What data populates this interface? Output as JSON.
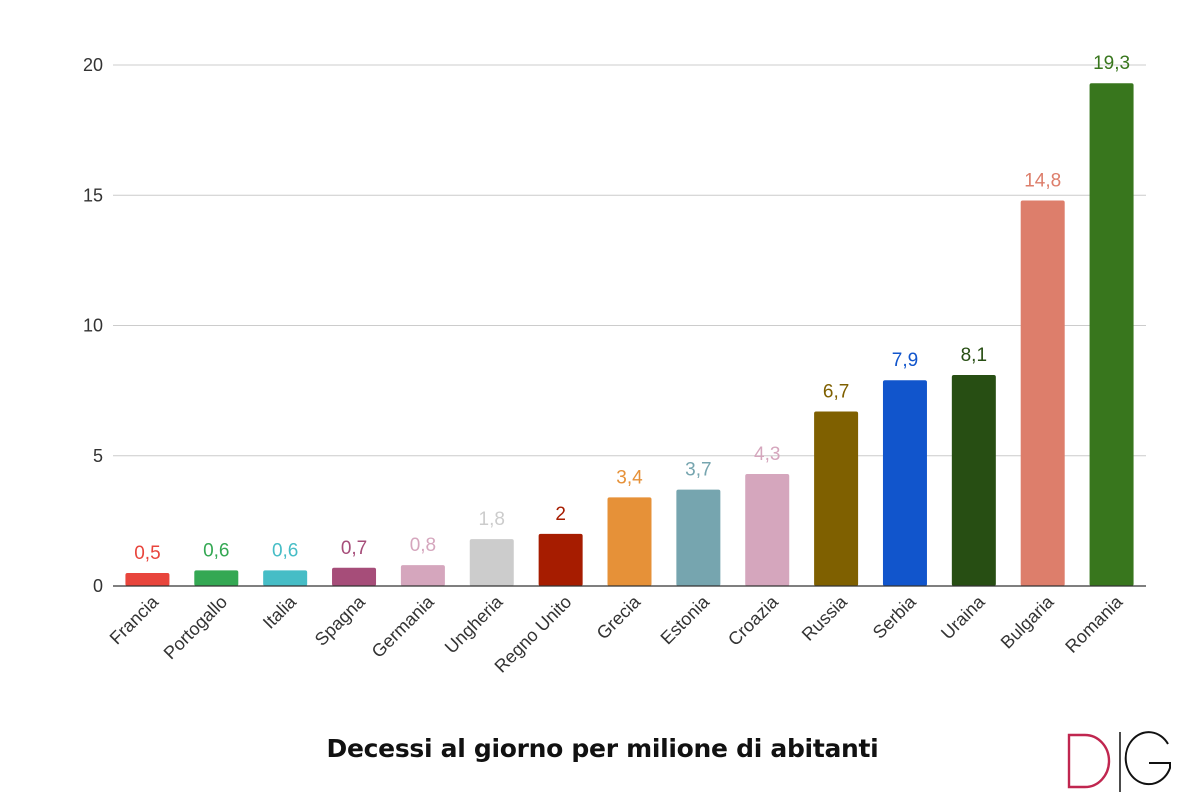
{
  "chart_data": {
    "type": "bar",
    "title": "Decessi al giorno per milione di abitanti",
    "xlabel": "",
    "ylabel": "",
    "ylim": [
      0,
      20
    ],
    "yticks": [
      "0",
      "5",
      "10",
      "15",
      "20"
    ],
    "grid": true,
    "legend": "none",
    "categories": [
      "Francia",
      "Portogallo",
      "Italia",
      "Spagna",
      "Germania",
      "Ungheria",
      "Regno Unito",
      "Grecia",
      "Estonia",
      "Croazia",
      "Russia",
      "Serbia",
      "Uraina",
      "Bulgaria",
      "Romania"
    ],
    "values": [
      0.5,
      0.6,
      0.6,
      0.7,
      0.8,
      1.8,
      2,
      3.4,
      3.7,
      4.3,
      6.7,
      7.9,
      8.1,
      14.8,
      19.3
    ],
    "data_labels": [
      "0,5",
      "0,6",
      "0,6",
      "0,7",
      "0,8",
      "1,8",
      "2",
      "3,4",
      "3,7",
      "4,3",
      "6,7",
      "7,9",
      "8,1",
      "14,8",
      "19,3"
    ],
    "colors": [
      "#e8453c",
      "#34a853",
      "#46bdc6",
      "#a64d79",
      "#d5a6bd",
      "#cccccc",
      "#a61c00",
      "#e69138",
      "#76a5af",
      "#d5a6bd",
      "#7f6000",
      "#1155cc",
      "#274e13",
      "#dd7e6b",
      "#38761d"
    ]
  },
  "logo": {
    "text": "D|G",
    "color_d": "#c0264f",
    "color_g": "#111111"
  }
}
